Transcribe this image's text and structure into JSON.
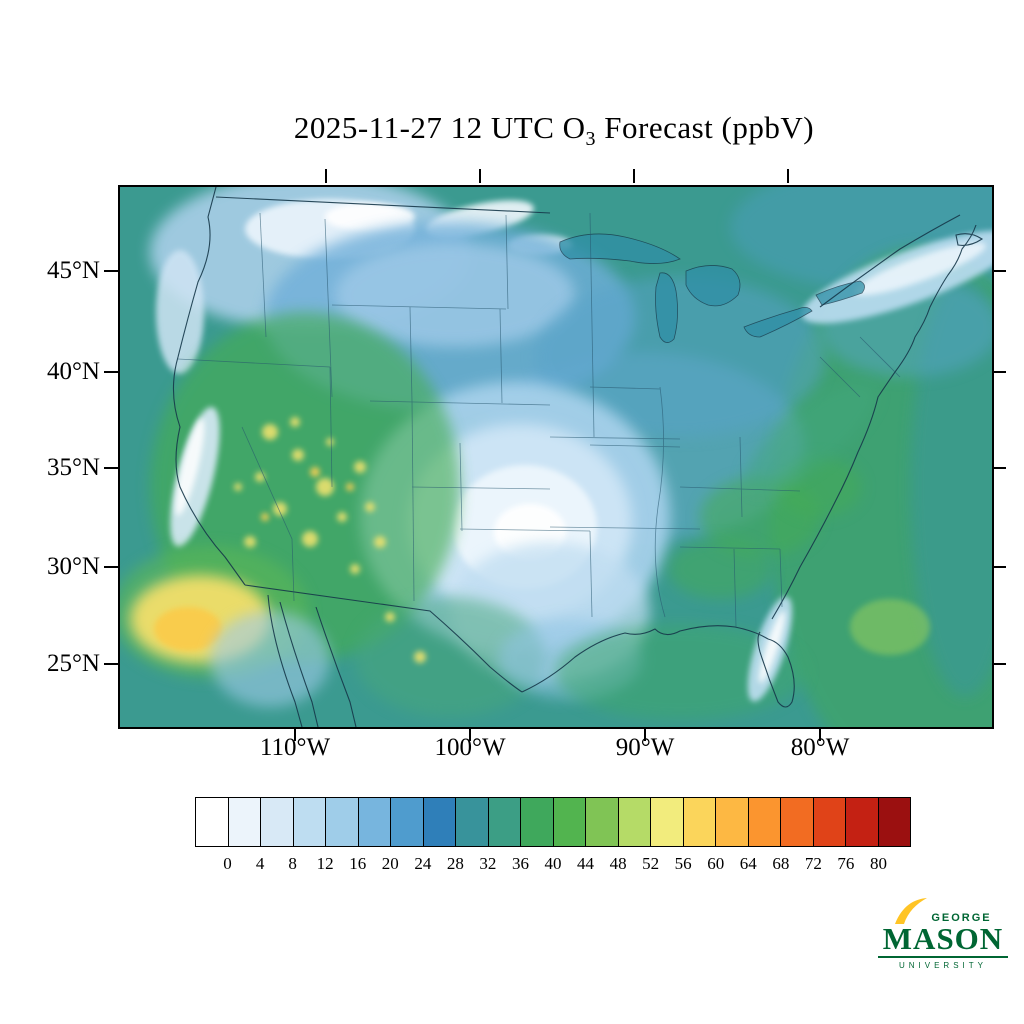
{
  "title": {
    "prefix": "2025-11-27 12 UTC O",
    "sub": "3",
    "suffix": " Forecast (ppbV)",
    "full": "2025-11-27 12 UTC O3 Forecast (ppbV)"
  },
  "axes": {
    "lat_ticks": [
      "45°N",
      "40°N",
      "35°N",
      "30°N",
      "25°N"
    ],
    "lon_ticks": [
      "110°W",
      "100°W",
      "90°W",
      "80°W"
    ]
  },
  "colorbar": {
    "labels": [
      "0",
      "4",
      "8",
      "12",
      "16",
      "20",
      "24",
      "28",
      "32",
      "36",
      "40",
      "44",
      "48",
      "52",
      "56",
      "60",
      "64",
      "68",
      "72",
      "76",
      "80"
    ],
    "colors": [
      "#FFFFFF",
      "#ECF4FB",
      "#D8E9F6",
      "#BEDDF1",
      "#9FCDE9",
      "#77B5DE",
      "#4F9CCE",
      "#2F7FB9",
      "#38939B",
      "#3C9E85",
      "#3FA85C",
      "#52B44F",
      "#80C455",
      "#B5DB67",
      "#F2EC7D",
      "#FBD55B",
      "#FDB843",
      "#FB952F",
      "#F26C22",
      "#E04318",
      "#C42113",
      "#9B1010"
    ]
  },
  "logo": {
    "line1": "GEORGE",
    "line2": "MASON",
    "line3": "UNIVERSITY",
    "green": "#006633",
    "gold": "#FFC425"
  },
  "chart_data": {
    "type": "heatmap",
    "title": "2025-11-27 12 UTC O3 Forecast (ppbV)",
    "variable": "O3",
    "units": "ppbV",
    "x_ticks": [
      "110°W",
      "100°W",
      "90°W",
      "80°W"
    ],
    "y_ticks": [
      "45°N",
      "40°N",
      "35°N",
      "30°N",
      "25°N"
    ],
    "colorbar": {
      "orientation": "horizontal",
      "levels": [
        0,
        4,
        8,
        12,
        16,
        20,
        24,
        28,
        32,
        36,
        40,
        44,
        48,
        52,
        56,
        60,
        64,
        68,
        72,
        76,
        80
      ],
      "colors": [
        "#FFFFFF",
        "#ECF4FB",
        "#D8E9F6",
        "#BEDDF1",
        "#9FCDE9",
        "#77B5DE",
        "#4F9CCE",
        "#2F7FB9",
        "#38939B",
        "#3C9E85",
        "#3FA85C",
        "#52B44F",
        "#80C455",
        "#B5DB67",
        "#F2EC7D",
        "#FBD55B",
        "#FDB843",
        "#FB952F",
        "#F26C22",
        "#E04318",
        "#C42113",
        "#9B1010"
      ]
    },
    "regions": [
      {
        "region": "Southern/Central Plains (TX-OK-KS)",
        "value_ppbV": "0-12, white core 0-4"
      },
      {
        "region": "Northern Plains / Upper Midwest",
        "value_ppbV": "12-24"
      },
      {
        "region": "Great Lakes and Northeast inland",
        "value_ppbV": "20-28"
      },
      {
        "region": "Eastern US / Southeast",
        "value_ppbV": "24-36"
      },
      {
        "region": "Intermountain West (NV-UT-AZ-NM-CO)",
        "value_ppbV": "36-48 with speckled maxima 44-52"
      },
      {
        "region": "Pacific Ocean off southern California / Baja",
        "value_ppbV": "44-60 maximum"
      },
      {
        "region": "Pacific Northwest coast",
        "value_ppbV": "0-16"
      },
      {
        "region": "California Central Valley",
        "value_ppbV": "0-12"
      },
      {
        "region": "Gulf of Mexico",
        "value_ppbV": "24-36"
      },
      {
        "region": "Western Atlantic / ocean background",
        "value_ppbV": "28-40"
      }
    ]
  }
}
